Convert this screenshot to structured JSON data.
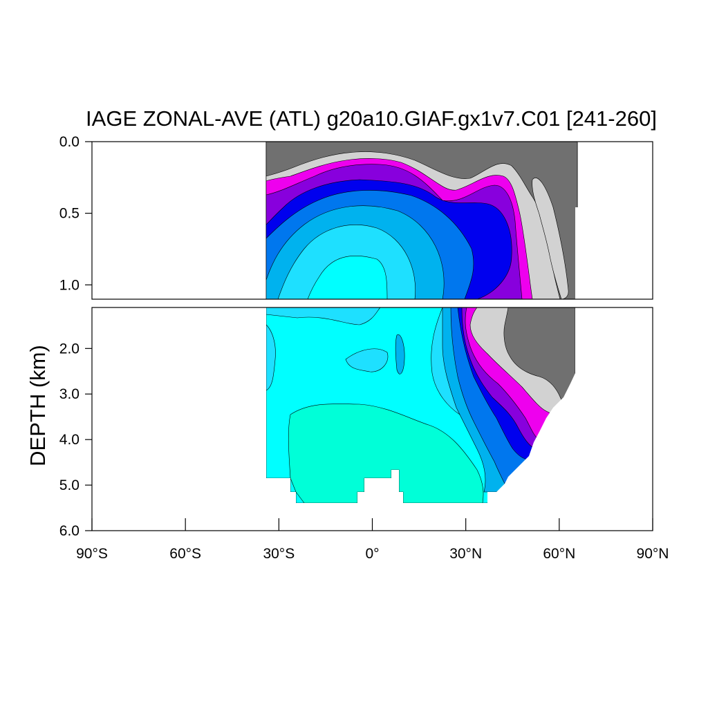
{
  "chart_data": {
    "type": "heatmap",
    "title": "IAGE ZONAL-AVE (ATL) g20a10.GIAF.gx1v7.C01 [241-260]",
    "xlabel": "",
    "ylabel": "DEPTH (km)",
    "x_ticks": [
      {
        "value": -90,
        "label": "90°S"
      },
      {
        "value": -60,
        "label": "60°S"
      },
      {
        "value": -30,
        "label": "30°S"
      },
      {
        "value": 0,
        "label": "0°"
      },
      {
        "value": 30,
        "label": "30°N"
      },
      {
        "value": 60,
        "label": "60°N"
      },
      {
        "value": 90,
        "label": "90°N"
      }
    ],
    "upper_panel": {
      "depth_range_km": [
        0,
        1.1
      ],
      "y_ticks": [
        {
          "value": 0.0,
          "label": "0.0"
        },
        {
          "value": 0.5,
          "label": "0.5"
        },
        {
          "value": 1.0,
          "label": "1.0"
        }
      ]
    },
    "lower_panel": {
      "depth_range_km": [
        1.1,
        6.0
      ],
      "y_ticks": [
        {
          "value": 2.0,
          "label": "2.0"
        },
        {
          "value": 3.0,
          "label": "3.0"
        },
        {
          "value": 4.0,
          "label": "4.0"
        },
        {
          "value": 5.0,
          "label": "5.0"
        },
        {
          "value": 6.0,
          "label": "6.0"
        }
      ]
    },
    "xlim": [
      -90,
      90
    ],
    "data_extent_lat": [
      -34,
      68
    ],
    "grid": false,
    "legend": "none",
    "fill_colors_youngest_to_oldest": [
      "#707070",
      "#d2d2d2",
      "#ee00ee",
      "#8800dd",
      "#0000ee",
      "#0077ee",
      "#00b2ee",
      "#1ee0ff",
      "#00ffff",
      "#00ffd8"
    ]
  }
}
